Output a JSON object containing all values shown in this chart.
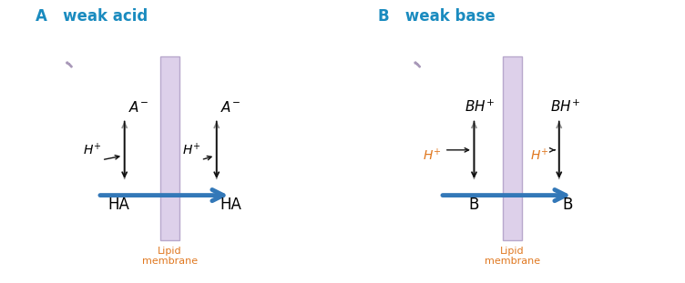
{
  "bg_color": "#ffffff",
  "title_color": "#1a8bbf",
  "membrane_color": "#ddd0ea",
  "membrane_edge_color": "#b8a8cc",
  "arrow_blue_color": "#3378b8",
  "arrow_gray_color": "#909090",
  "arrow_black_color": "#111111",
  "orange_color": "#e07820",
  "bent_arrow_fill": "#ddd0ea",
  "bent_arrow_edge": "#a898b8",
  "panel_A_title": "A   weak acid",
  "panel_B_title": "B   weak base",
  "lipid_membrane": "Lipid\nmembrane"
}
